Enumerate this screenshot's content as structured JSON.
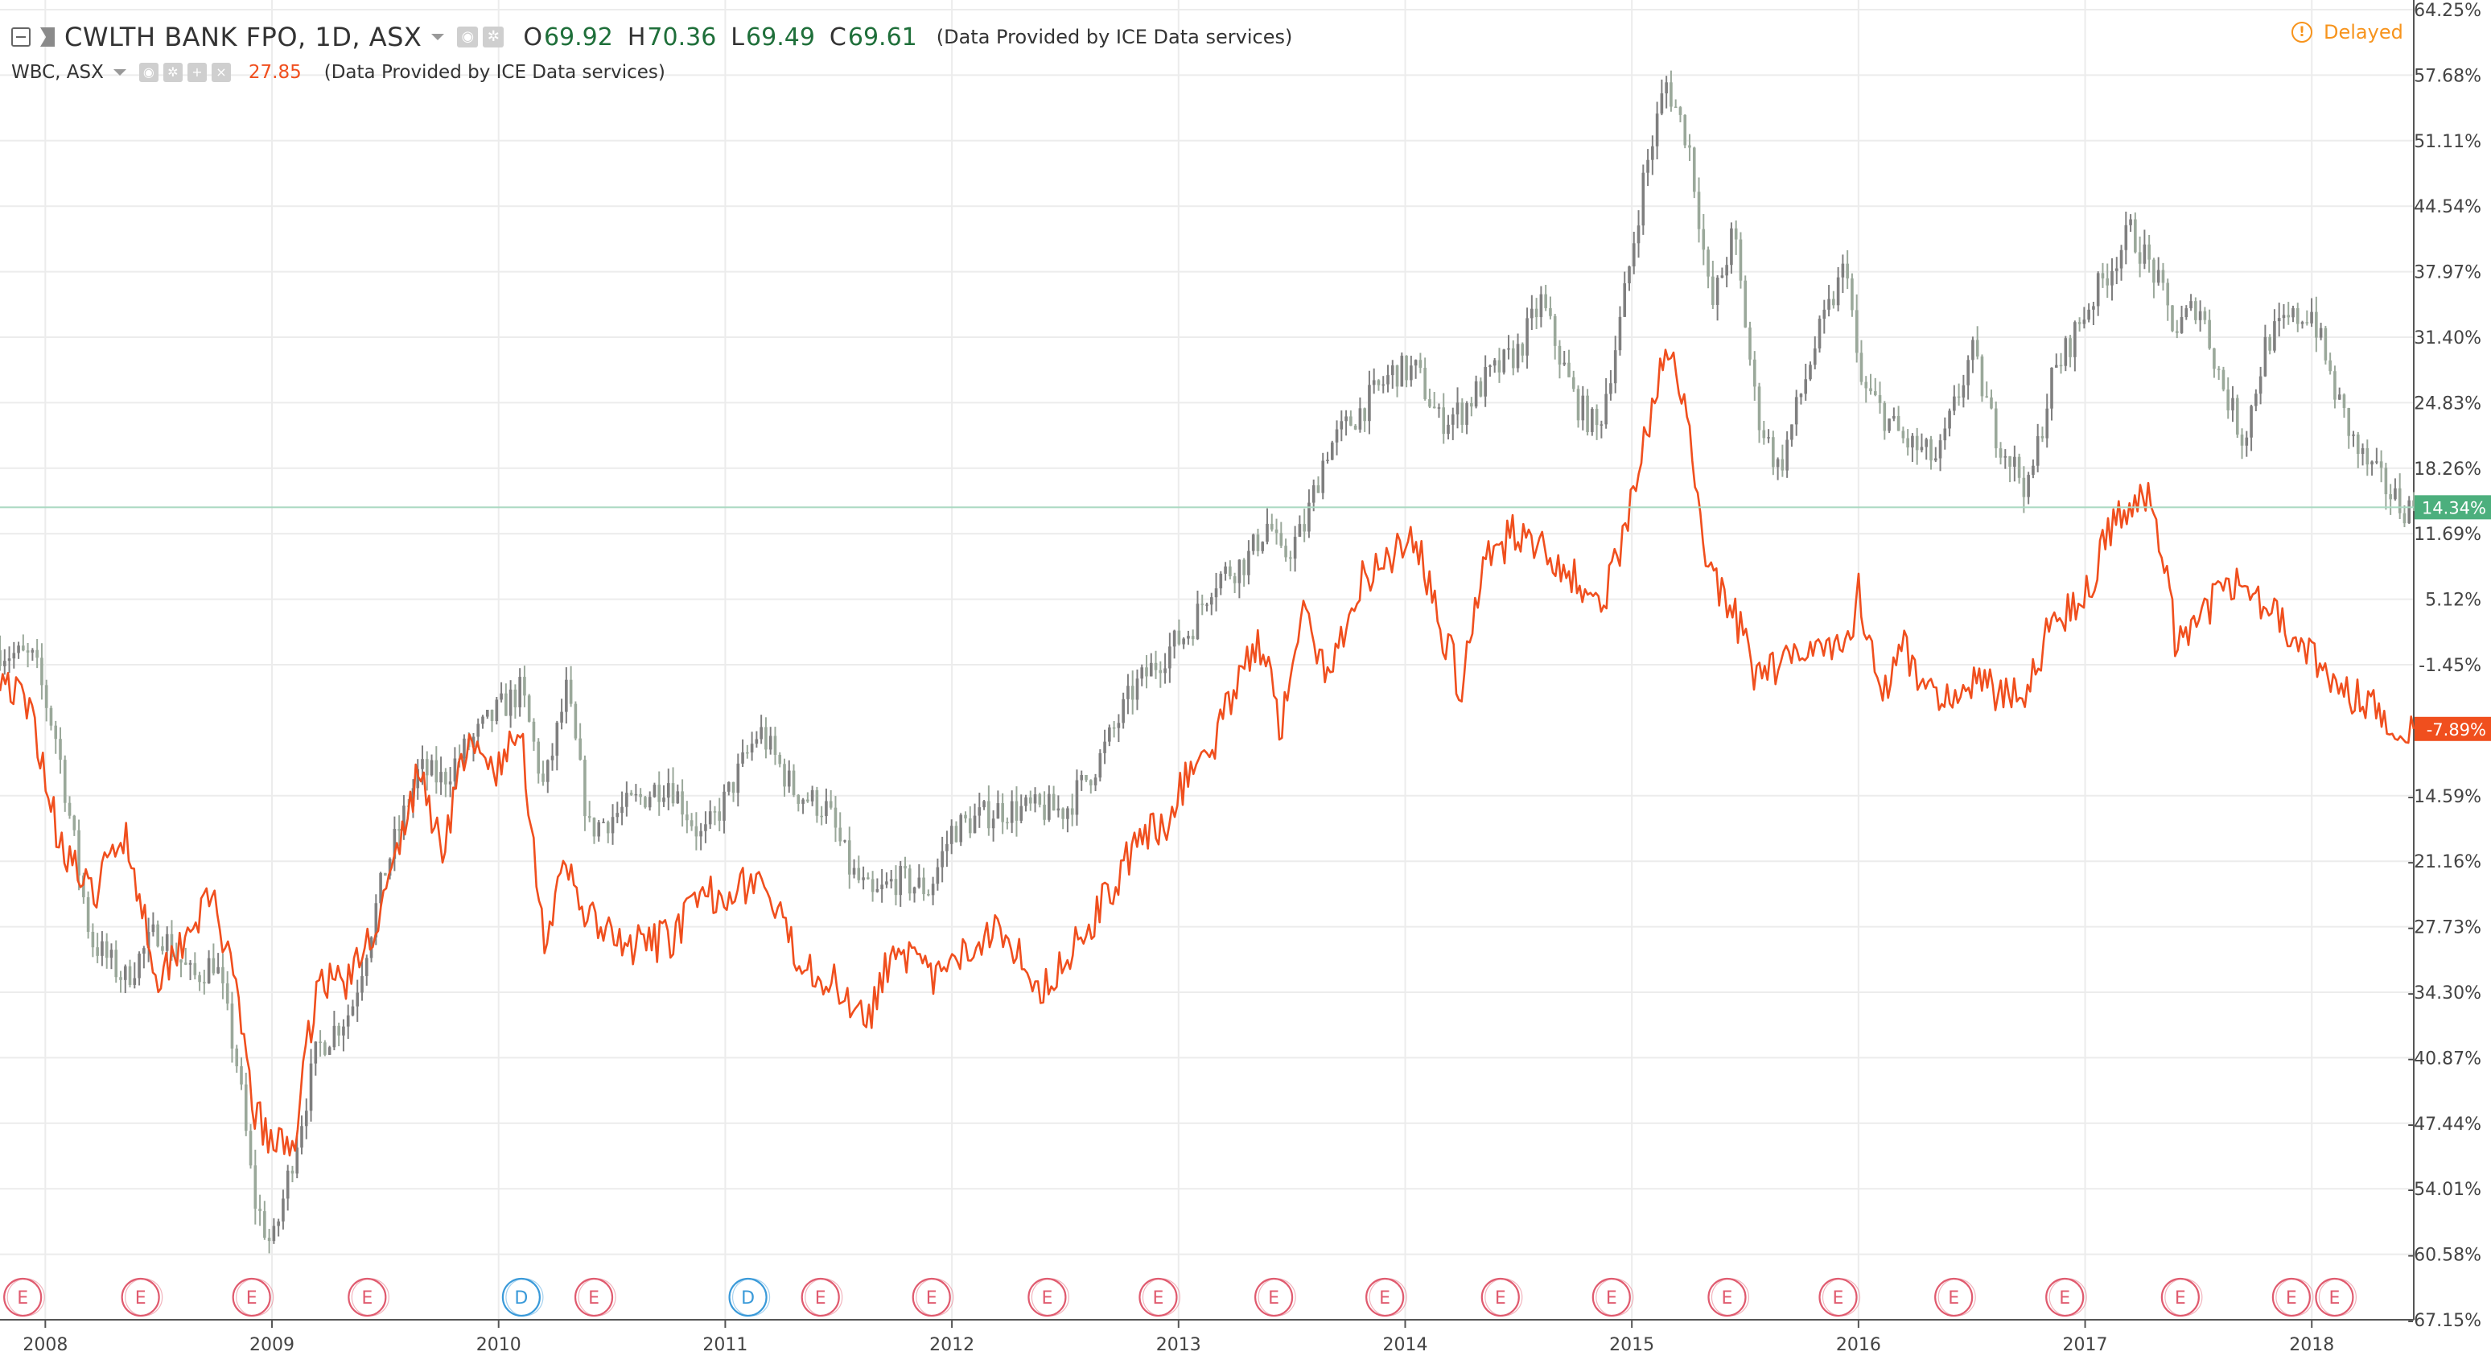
{
  "legend": {
    "main_symbol": "CWLTH BANK FPO, 1D, ASX",
    "ohlc": [
      {
        "key": "O",
        "value": "69.92"
      },
      {
        "key": "H",
        "value": "70.36"
      },
      {
        "key": "L",
        "value": "69.49"
      },
      {
        "key": "C",
        "value": "69.61"
      }
    ],
    "provider_main": "(Data Provided by ICE Data services)",
    "compare_symbol": "WBC, ASX",
    "compare_price": "27.85",
    "provider_compare": "(Data Provided by ICE Data services)"
  },
  "status": {
    "delayed_label": "Delayed",
    "delayed_icon": "exclamation-circle-icon"
  },
  "colors": {
    "cba_up": "#7f7f7f",
    "cba_down": "#9aa89a",
    "wbc_line": "#f04f1e",
    "cba_badge": "#4caf7d",
    "wbc_badge": "#f04f1e",
    "earnings_marker": "#e05b6f",
    "dividend_marker": "#3a9ad9",
    "grid": "#ececec",
    "axis_text": "#444444"
  },
  "chart_data": {
    "type": "line",
    "title": "",
    "xlabel": "",
    "ylabel": "",
    "y_unit": "%",
    "ylim": [
      -67.15,
      64.25
    ],
    "xlim": [
      2007.8,
      2018.45
    ],
    "y_ticks": [
      "64.25%",
      "57.68%",
      "51.11%",
      "44.54%",
      "37.97%",
      "31.40%",
      "24.83%",
      "18.26%",
      "11.69%",
      "5.12%",
      "-1.45%",
      "-14.59%",
      "-21.16%",
      "-27.73%",
      "-34.30%",
      "-40.87%",
      "-47.44%",
      "-54.01%",
      "-60.58%",
      "-67.15%"
    ],
    "y_tick_values": [
      64.25,
      57.68,
      51.11,
      44.54,
      37.97,
      31.4,
      24.83,
      18.26,
      11.69,
      5.12,
      -1.45,
      -14.59,
      -21.16,
      -27.73,
      -34.3,
      -40.87,
      -47.44,
      -54.01,
      -60.58,
      -67.15
    ],
    "x_ticks": [
      "2008",
      "2009",
      "2010",
      "2011",
      "2012",
      "2013",
      "2014",
      "2015",
      "2016",
      "2017",
      "2018"
    ],
    "x_tick_values": [
      2008.0,
      2009.0,
      2010.0,
      2011.0,
      2012.0,
      2013.0,
      2014.0,
      2015.0,
      2016.0,
      2017.0,
      2018.0
    ],
    "grid": true,
    "last_value_labels": [
      {
        "series": "CWLTH BANK FPO",
        "label": "14.34%",
        "value": 14.34
      },
      {
        "series": "WBC",
        "label": "-7.89%",
        "value": -7.89
      }
    ],
    "series": [
      {
        "name": "CWLTH BANK FPO",
        "style": "candles",
        "x": [
          2007.8,
          2007.95,
          2008.05,
          2008.2,
          2008.35,
          2008.5,
          2008.65,
          2008.75,
          2008.85,
          2008.92,
          2009.0,
          2009.1,
          2009.2,
          2009.35,
          2009.5,
          2009.65,
          2009.75,
          2009.85,
          2010.0,
          2010.1,
          2010.2,
          2010.3,
          2010.4,
          2010.55,
          2010.75,
          2010.9,
          2011.0,
          2011.15,
          2011.3,
          2011.45,
          2011.55,
          2011.65,
          2011.75,
          2011.9,
          2012.0,
          2012.2,
          2012.4,
          2012.5,
          2012.65,
          2012.8,
          2012.95,
          2013.05,
          2013.15,
          2013.3,
          2013.4,
          2013.45,
          2013.55,
          2013.65,
          2013.8,
          2013.95,
          2014.05,
          2014.15,
          2014.25,
          2014.35,
          2014.5,
          2014.6,
          2014.75,
          2014.85,
          2014.95,
          2015.05,
          2015.15,
          2015.25,
          2015.3,
          2015.35,
          2015.45,
          2015.55,
          2015.65,
          2015.8,
          2015.95,
          2016.0,
          2016.1,
          2016.2,
          2016.35,
          2016.5,
          2016.6,
          2016.75,
          2016.85,
          2017.0,
          2017.1,
          2017.2,
          2017.3,
          2017.4,
          2017.5,
          2017.6,
          2017.7,
          2017.8,
          2017.9,
          2018.0,
          2018.1,
          2018.2,
          2018.3,
          2018.4
        ],
        "values": [
          0,
          -1,
          -9,
          -29,
          -33,
          -28,
          -33,
          -31,
          -42,
          -55,
          -60,
          -50,
          -40,
          -36,
          -22,
          -12,
          -13,
          -10,
          -6,
          -4,
          -14,
          -4,
          -18,
          -16,
          -13,
          -19,
          -15,
          -8,
          -14,
          -16,
          -22,
          -25,
          -23,
          -24,
          -18,
          -16,
          -16,
          -16,
          -11,
          -4,
          0,
          2,
          7,
          9,
          13,
          9,
          12,
          20,
          24,
          28,
          28,
          23,
          24,
          27,
          30,
          35,
          25,
          22,
          33,
          47,
          57,
          51,
          43,
          34,
          42,
          24,
          18,
          30,
          39,
          27,
          24,
          21,
          19,
          30,
          22,
          16,
          27,
          34,
          38,
          42,
          38,
          32,
          35,
          27,
          21,
          31,
          33,
          34,
          26,
          20,
          17,
          14.34
        ]
      },
      {
        "name": "WBC",
        "style": "line",
        "x": [
          2007.8,
          2007.95,
          2008.05,
          2008.2,
          2008.35,
          2008.5,
          2008.65,
          2008.75,
          2008.85,
          2008.92,
          2009.0,
          2009.1,
          2009.2,
          2009.35,
          2009.5,
          2009.65,
          2009.75,
          2009.85,
          2010.0,
          2010.1,
          2010.2,
          2010.3,
          2010.4,
          2010.55,
          2010.75,
          2010.9,
          2011.0,
          2011.15,
          2011.3,
          2011.45,
          2011.55,
          2011.65,
          2011.75,
          2011.9,
          2012.0,
          2012.2,
          2012.4,
          2012.5,
          2012.65,
          2012.8,
          2012.95,
          2013.05,
          2013.15,
          2013.3,
          2013.4,
          2013.45,
          2013.55,
          2013.65,
          2013.8,
          2013.95,
          2014.05,
          2014.15,
          2014.25,
          2014.35,
          2014.5,
          2014.6,
          2014.75,
          2014.85,
          2014.95,
          2015.05,
          2015.15,
          2015.25,
          2015.3,
          2015.35,
          2015.45,
          2015.55,
          2015.65,
          2015.8,
          2015.95,
          2016.0,
          2016.1,
          2016.2,
          2016.35,
          2016.5,
          2016.6,
          2016.75,
          2016.85,
          2017.0,
          2017.1,
          2017.2,
          2017.3,
          2017.4,
          2017.5,
          2017.6,
          2017.7,
          2017.8,
          2017.9,
          2018.0,
          2018.1,
          2018.2,
          2018.3,
          2018.4
        ],
        "values": [
          -2,
          -7,
          -18,
          -25,
          -18,
          -33,
          -27,
          -25,
          -36,
          -46,
          -50,
          -49,
          -33,
          -33,
          -25,
          -12,
          -20,
          -10,
          -12,
          -8,
          -29,
          -22,
          -27,
          -30,
          -29,
          -25,
          -24,
          -23,
          -30,
          -33,
          -35,
          -36,
          -29,
          -33,
          -32,
          -27,
          -34,
          -31,
          -26,
          -20,
          -17,
          -12,
          -10,
          0,
          0,
          -8,
          4,
          -3,
          7,
          10,
          11,
          3,
          -4,
          9,
          12,
          11,
          7,
          4,
          10,
          20,
          30,
          24,
          13,
          7,
          4,
          -3,
          -1,
          1,
          0,
          6,
          -5,
          0,
          -5,
          -3,
          -4,
          -4,
          3,
          5,
          12,
          15,
          15,
          1,
          3,
          6,
          8,
          4,
          2,
          0,
          -4,
          -5,
          -6,
          -7.89
        ]
      }
    ],
    "event_markers": [
      {
        "x": 2007.9,
        "label": "E"
      },
      {
        "x": 2008.42,
        "label": "E"
      },
      {
        "x": 2008.91,
        "label": "E"
      },
      {
        "x": 2009.42,
        "label": "E"
      },
      {
        "x": 2010.1,
        "label": "D"
      },
      {
        "x": 2010.42,
        "label": "E"
      },
      {
        "x": 2011.1,
        "label": "D"
      },
      {
        "x": 2011.42,
        "label": "E"
      },
      {
        "x": 2011.91,
        "label": "E"
      },
      {
        "x": 2012.42,
        "label": "E"
      },
      {
        "x": 2012.91,
        "label": "E"
      },
      {
        "x": 2013.42,
        "label": "E"
      },
      {
        "x": 2013.91,
        "label": "E"
      },
      {
        "x": 2014.42,
        "label": "E"
      },
      {
        "x": 2014.91,
        "label": "E"
      },
      {
        "x": 2015.42,
        "label": "E"
      },
      {
        "x": 2015.91,
        "label": "E"
      },
      {
        "x": 2016.42,
        "label": "E"
      },
      {
        "x": 2016.91,
        "label": "E"
      },
      {
        "x": 2017.42,
        "label": "E"
      },
      {
        "x": 2017.91,
        "label": "E"
      },
      {
        "x": 2018.1,
        "label": "E"
      }
    ]
  }
}
